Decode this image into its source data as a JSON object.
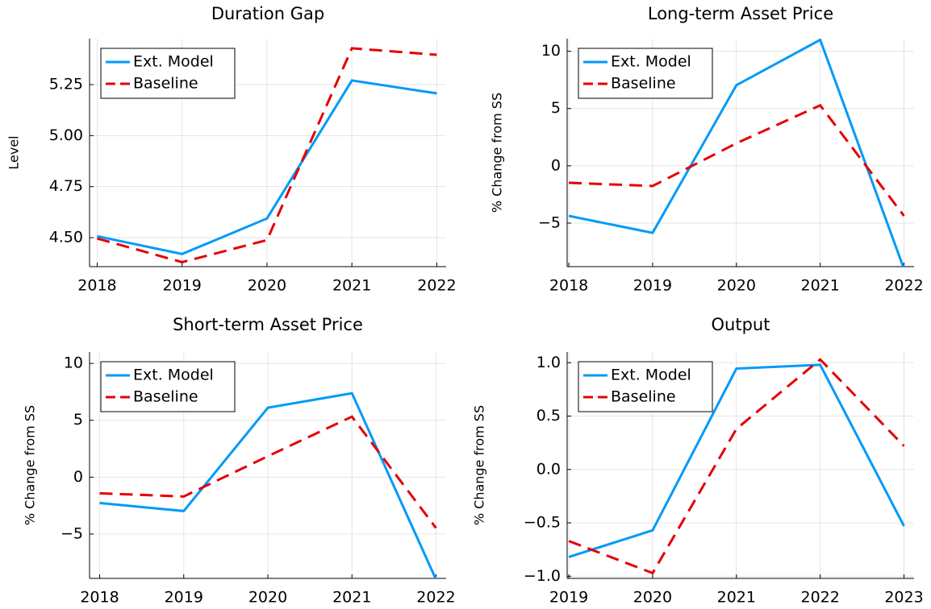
{
  "chart_data": [
    {
      "type": "line",
      "title": "Duration Gap",
      "ylabel": "Level",
      "x": [
        2018,
        2019,
        2020,
        2021,
        2022
      ],
      "series": [
        {
          "name": "Ext. Model",
          "color": "#009af9",
          "linestyle": "solid",
          "values": [
            4.507,
            4.42,
            4.594,
            5.27,
            5.207
          ]
        },
        {
          "name": "Baseline",
          "color": "#e50000",
          "linestyle": "dash",
          "values": [
            4.496,
            4.38,
            4.488,
            5.428,
            5.396
          ]
        }
      ],
      "xlim": [
        2017.91,
        2022.11
      ],
      "xticks": [
        2018,
        2019,
        2020,
        2021,
        2022
      ],
      "ylim": [
        4.358,
        5.475
      ],
      "yticks": [
        {
          "value": 4.5,
          "label": "4.50"
        },
        {
          "value": 4.75,
          "label": "4.75"
        },
        {
          "value": 5.0,
          "label": "5.00"
        },
        {
          "value": 5.25,
          "label": "5.25"
        }
      ],
      "grid": true,
      "legend": "top-left"
    },
    {
      "type": "line",
      "title": "Long-term Asset Price",
      "ylabel": "% Change from SS",
      "x": [
        2018,
        2019,
        2020,
        2021,
        2022
      ],
      "series": [
        {
          "name": "Ext. Model",
          "color": "#009af9",
          "linestyle": "solid",
          "values": [
            -4.37,
            -5.85,
            7.04,
            11.0,
            -9.0
          ]
        },
        {
          "name": "Baseline",
          "color": "#e50000",
          "linestyle": "dash",
          "values": [
            -1.48,
            -1.76,
            1.97,
            5.28,
            -4.37
          ]
        }
      ],
      "xlim": [
        2017.98,
        2022.12
      ],
      "xticks": [
        2018,
        2019,
        2020,
        2021,
        2022
      ],
      "ylim": [
        -8.8,
        11.1
      ],
      "yticks": [
        {
          "value": -5,
          "label": "−5"
        },
        0,
        5,
        10
      ],
      "grid": true,
      "legend": "top-left"
    },
    {
      "type": "line",
      "title": "Short-term Asset Price",
      "ylabel": "% Change from SS",
      "x": [
        2018,
        2019,
        2020,
        2021,
        2022
      ],
      "series": [
        {
          "name": "Ext. Model",
          "color": "#009af9",
          "linestyle": "solid",
          "values": [
            -2.27,
            -2.98,
            6.1,
            7.38,
            -9.0
          ]
        },
        {
          "name": "Baseline",
          "color": "#e50000",
          "linestyle": "dash",
          "values": [
            -1.42,
            -1.7,
            1.84,
            5.32,
            -4.47
          ]
        }
      ],
      "xlim": [
        2017.88,
        2022.12
      ],
      "xticks": [
        2018,
        2019,
        2020,
        2021,
        2022
      ],
      "ylim": [
        -8.9,
        11.0
      ],
      "yticks": [
        {
          "value": -5,
          "label": "−5"
        },
        0,
        5,
        10
      ],
      "grid": true,
      "legend": "top-left"
    },
    {
      "type": "line",
      "title": "Output",
      "ylabel": "% Change from SS",
      "x": [
        2019,
        2020,
        2021,
        2022,
        2023
      ],
      "series": [
        {
          "name": "Ext. Model",
          "color": "#009af9",
          "linestyle": "solid",
          "values": [
            -0.82,
            -0.57,
            0.945,
            0.98,
            -0.53
          ]
        },
        {
          "name": "Baseline",
          "color": "#e50000",
          "linestyle": "dash",
          "values": [
            -0.67,
            -0.97,
            0.38,
            1.03,
            0.22
          ]
        }
      ],
      "xlim": [
        2018.98,
        2023.12
      ],
      "xticks": [
        2019,
        2020,
        2021,
        2022,
        2023
      ],
      "ylim": [
        -1.02,
        1.1
      ],
      "yticks": [
        {
          "value": -1.0,
          "label": "−1.0"
        },
        {
          "value": -0.5,
          "label": "−0.5"
        },
        {
          "value": 0.0,
          "label": "0.0"
        },
        {
          "value": 0.5,
          "label": "0.5"
        },
        {
          "value": 1.0,
          "label": "1.0"
        }
      ],
      "grid": true,
      "legend": "top-left"
    }
  ]
}
